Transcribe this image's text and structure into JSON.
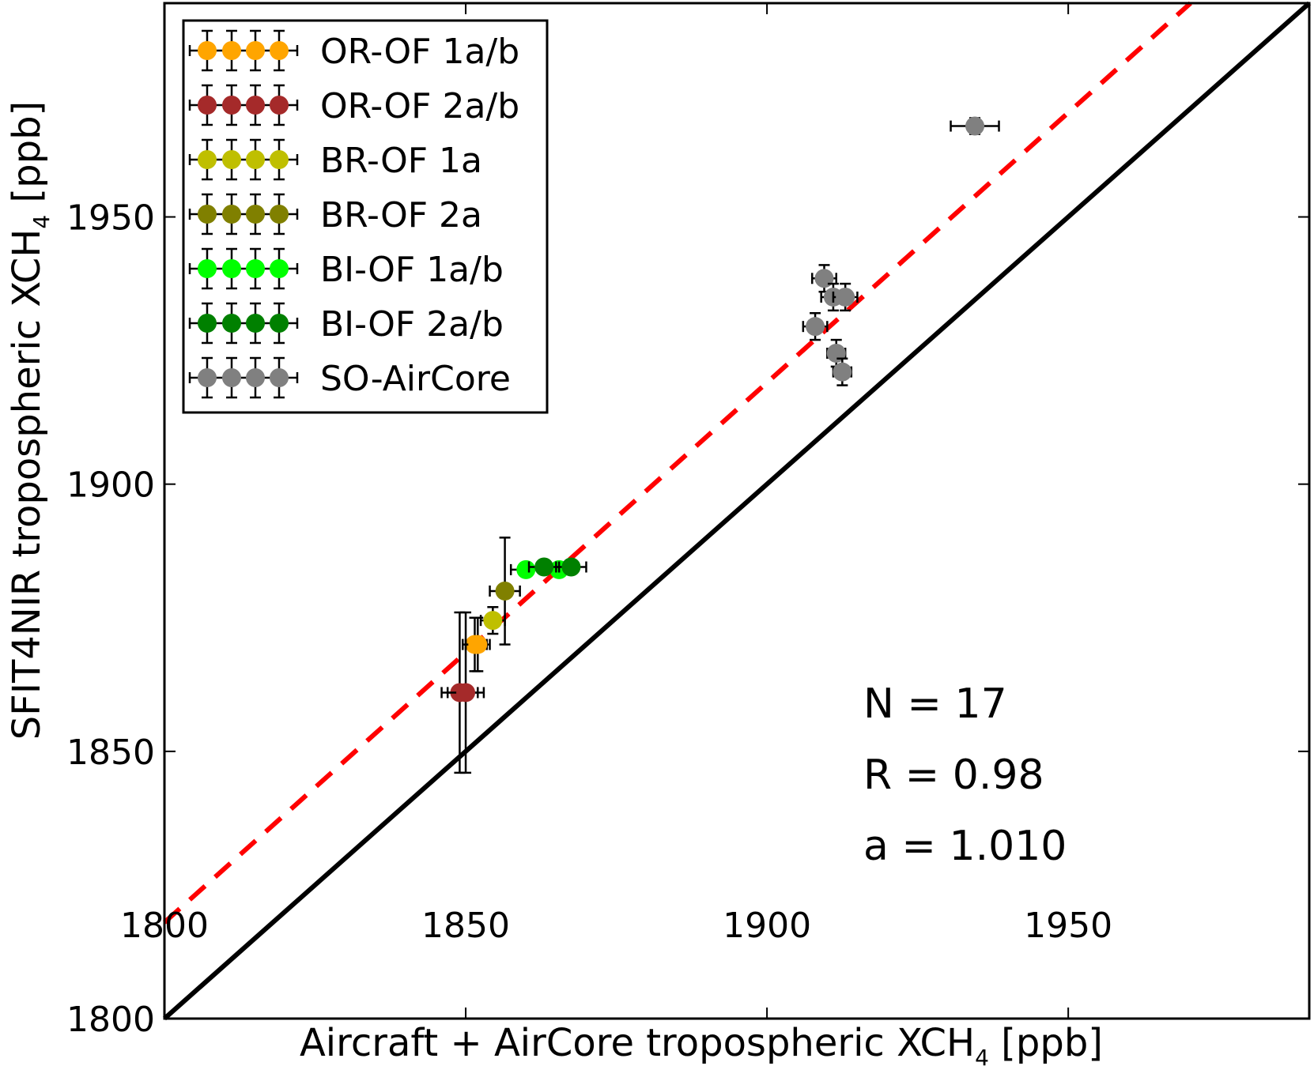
{
  "chart_data": {
    "type": "scatter",
    "xlabel_main": "Aircraft + AirCore tropospheric XCH",
    "xlabel_sub": "4",
    "xlabel_unit": "[ppb]",
    "ylabel_main": "SFIT4NIR tropospheric XCH",
    "ylabel_sub": "4",
    "ylabel_unit": "[ppb]",
    "xlim": [
      1800,
      1990
    ],
    "ylim": [
      1800,
      1990
    ],
    "xticks": [
      1800,
      1850,
      1900,
      1950
    ],
    "yticks": [
      1800,
      1850,
      1900,
      1950
    ],
    "grid": false,
    "legend_position": "top-left",
    "one_to_one_line": {
      "color": "#000000",
      "style": "solid"
    },
    "fit_line": {
      "color": "#ff0000",
      "style": "dashed",
      "slope": 1.01,
      "intercept": 0
    },
    "stats": [
      "N = 17",
      "R = 0.98",
      "a = 1.010"
    ],
    "series": [
      {
        "name": "OR-OF 1a/b",
        "color": "#ffa500",
        "points": [
          {
            "x": 1851.5,
            "y": 1870,
            "xerr": 2,
            "yerr": 5
          },
          {
            "x": 1852,
            "y": 1870,
            "xerr": 2,
            "yerr": 5
          }
        ]
      },
      {
        "name": "OR-OF 2a/b",
        "color": "#a52a2a",
        "points": [
          {
            "x": 1849,
            "y": 1861,
            "xerr": 3,
            "yerr": 15
          },
          {
            "x": 1850,
            "y": 1861,
            "xerr": 3,
            "yerr": 15
          }
        ]
      },
      {
        "name": "BR-OF 1a",
        "color": "#bfbf00",
        "points": [
          {
            "x": 1854.5,
            "y": 1874.5,
            "xerr": 2,
            "yerr": 2.5
          }
        ]
      },
      {
        "name": "BR-OF 2a",
        "color": "#808000",
        "points": [
          {
            "x": 1856.5,
            "y": 1880,
            "xerr": 2.5,
            "yerr": 10
          }
        ]
      },
      {
        "name": "BI-OF 1a/b",
        "color": "#00ff00",
        "points": [
          {
            "x": 1860,
            "y": 1884,
            "xerr": 2.5,
            "yerr": 1
          },
          {
            "x": 1865.5,
            "y": 1884,
            "xerr": 2.5,
            "yerr": 1
          }
        ]
      },
      {
        "name": "BI-OF 2a/b",
        "color": "#008000",
        "points": [
          {
            "x": 1863,
            "y": 1884.5,
            "xerr": 2.5,
            "yerr": 1
          },
          {
            "x": 1867.5,
            "y": 1884.5,
            "xerr": 2.5,
            "yerr": 1
          }
        ]
      },
      {
        "name": "SO-AirCore",
        "color": "#808080",
        "points": [
          {
            "x": 1934.5,
            "y": 1967,
            "xerr": 4,
            "yerr": 1.5
          },
          {
            "x": 1909.5,
            "y": 1938.5,
            "xerr": 2,
            "yerr": 2.5
          },
          {
            "x": 1911,
            "y": 1935,
            "xerr": 2,
            "yerr": 2.5
          },
          {
            "x": 1913,
            "y": 1935,
            "xerr": 2,
            "yerr": 2.5
          },
          {
            "x": 1908,
            "y": 1929.5,
            "xerr": 2,
            "yerr": 2.5
          },
          {
            "x": 1911.5,
            "y": 1924.5,
            "xerr": 1.5,
            "yerr": 2.5
          },
          {
            "x": 1912.5,
            "y": 1921,
            "xerr": 1.5,
            "yerr": 2.5
          }
        ]
      }
    ]
  }
}
